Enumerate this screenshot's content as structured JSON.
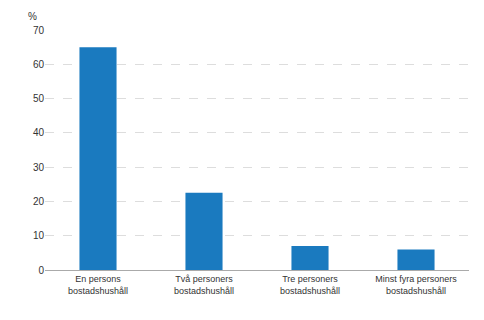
{
  "chart_data": {
    "type": "bar",
    "categories": [
      "En persons\nbostadshushåll",
      "Två personers\nbostadshushåll",
      "Tre personers\nbostadshushåll",
      "Minst fyra personers\nbostadshushåll"
    ],
    "values": [
      65.0,
      22.5,
      7.0,
      6.0
    ],
    "color": "#1a7abf",
    "ylabel": "%",
    "ylim": [
      0,
      70
    ],
    "yticks": [
      0,
      10,
      20,
      30,
      40,
      50,
      60,
      70
    ],
    "grid": true
  }
}
